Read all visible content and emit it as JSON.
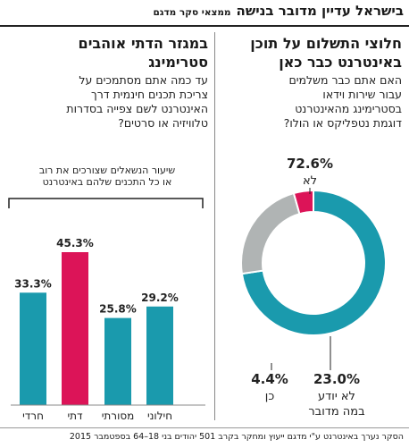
{
  "header": {
    "title": "בישראל עדיין מדובר בנישה",
    "subtitle": "ממצאי סקר מדגם"
  },
  "left_panel": {
    "title_line1": "במגזר הדתי אוהבים",
    "title_line2": "סטרימינג",
    "question": [
      "עד כמה אתם מסתמכים על",
      "צריכת תכנים חינמית דרך",
      "האינטרנט לשם צפייה בסדרות",
      "טלוויזיה או סרטים?"
    ],
    "chart_note": [
      "שיעור הנשאלים שצורכים את רוב",
      "או כל התכנים שלהם באינטרנט"
    ]
  },
  "right_panel": {
    "title_line1": "חלוצי התשלום על תוכן",
    "title_line2": "באינטרנט כבר כאן",
    "question": [
      "האם אתם כבר משלמים",
      "עבור שירות וידאו",
      "בסטרימינג מהאינטרנט",
      "דוגמת נטפליקס או הולו?"
    ]
  },
  "footnote": "הסקר נערך באינטרנט ע\"י מדגם ייעוץ ומחקר בקרב 501 יהודים בני 18–64 בספטמבר 2015",
  "colors": {
    "teal": "#1a9aad",
    "crimson": "#dc1458",
    "gray": "#b0b4b4"
  },
  "chart_data": [
    {
      "type": "bar",
      "categories": [
        "חרדי",
        "דתי",
        "מסורתי",
        "חילוני"
      ],
      "values": [
        33.3,
        45.3,
        25.8,
        29.2
      ],
      "labels": [
        "33.3%",
        "45.3%",
        "25.8%",
        "29.2%"
      ],
      "colors": [
        "#1a9aad",
        "#dc1458",
        "#1a9aad",
        "#1a9aad"
      ],
      "ylim": [
        0,
        45.3
      ]
    },
    {
      "type": "pie",
      "donut": true,
      "slices": [
        {
          "label": "לא",
          "value": 72.6,
          "value_label": "72.6%",
          "color": "#1a9aad"
        },
        {
          "label": "לא יודע במה מדובר",
          "label_lines": [
            "לא יודע",
            "במה מדובר"
          ],
          "value": 23.0,
          "value_label": "23.0%",
          "color": "#b0b4b4"
        },
        {
          "label": "כן",
          "value": 4.4,
          "value_label": "4.4%",
          "color": "#dc1458"
        }
      ]
    }
  ]
}
